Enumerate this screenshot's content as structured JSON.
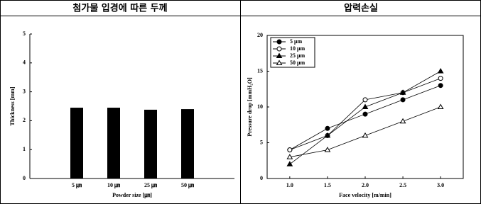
{
  "chart_data": [
    {
      "type": "bar",
      "title": "첨가물 입경에 따른 두께",
      "categories": [
        "5 ㎛",
        "10 ㎛",
        "25 ㎛",
        "50 ㎛"
      ],
      "values": [
        2.45,
        2.45,
        2.38,
        2.4
      ],
      "color": "#000000",
      "ylim": [
        0,
        5
      ],
      "yticks": [
        0,
        1,
        2,
        3,
        4,
        5
      ],
      "xlabel": "Powder size [㎛]",
      "ylabel": "Thickness [mm]"
    },
    {
      "type": "line",
      "title": "압력손실",
      "x": [
        1.0,
        1.5,
        2.0,
        2.5,
        3.0
      ],
      "series": [
        {
          "name": "5 μm",
          "color": "#000000",
          "marker": "circle",
          "filled": true,
          "values": [
            4,
            7,
            9,
            11,
            13
          ]
        },
        {
          "name": "10 μm",
          "color": "#000000",
          "marker": "circle",
          "filled": false,
          "values": [
            4,
            6,
            11,
            12,
            14
          ]
        },
        {
          "name": "25 μm",
          "color": "#000000",
          "marker": "triangle",
          "filled": true,
          "values": [
            2,
            6,
            10,
            12,
            15
          ]
        },
        {
          "name": "50 μm",
          "color": "#000000",
          "marker": "triangle",
          "filled": false,
          "values": [
            3,
            4,
            6,
            8,
            10
          ]
        }
      ],
      "xlim": [
        0.7,
        3.3
      ],
      "xticks": [
        {
          "value": 1.0,
          "label": "1.0"
        },
        {
          "value": 1.5,
          "label": "1.5"
        },
        {
          "value": 2.0,
          "label": "2.0"
        },
        {
          "value": 2.5,
          "label": "2.5"
        },
        {
          "value": 3.0,
          "label": "3.0"
        }
      ],
      "ylim": [
        0,
        20
      ],
      "yticks": [
        0,
        5,
        10,
        15,
        20
      ],
      "xlabel": "Face velocity [m/min]",
      "ylabel": "Pressure drop [mmH₂O]",
      "legend": "upper-left"
    }
  ]
}
